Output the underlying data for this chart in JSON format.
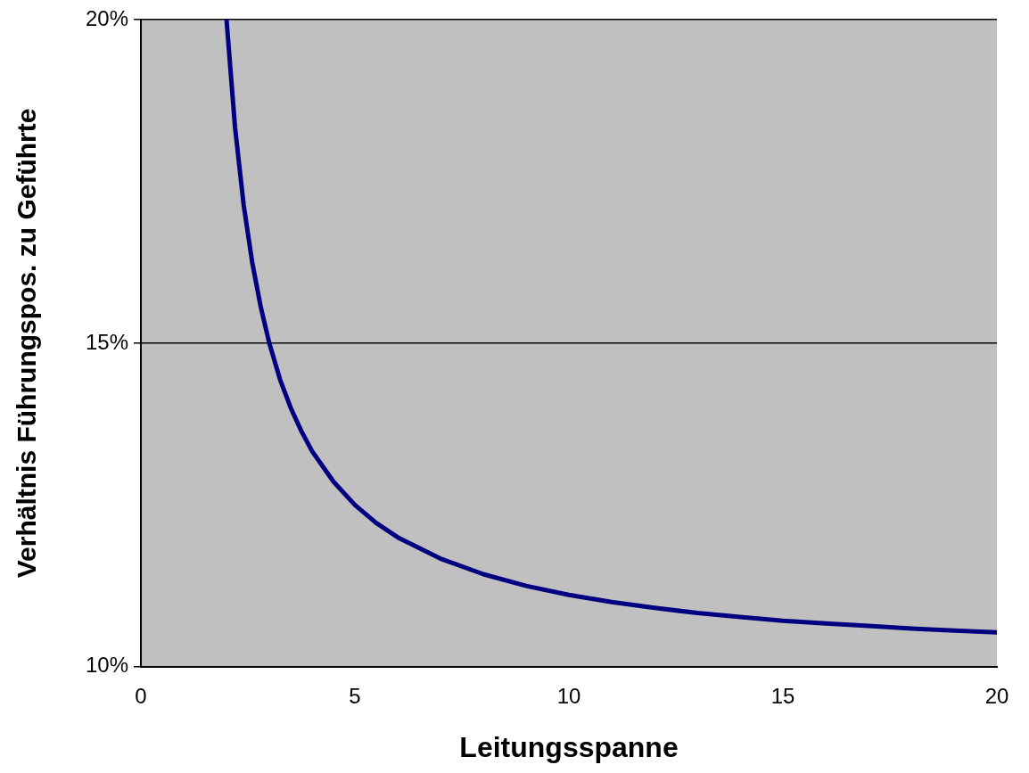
{
  "chart_data": {
    "type": "line",
    "xlabel": "Leitungsspanne",
    "ylabel": "Verhältnis Führungspos. zu Geführte",
    "x": [
      2,
      2.2,
      2.4,
      2.6,
      2.8,
      3,
      3.25,
      3.5,
      3.75,
      4,
      4.5,
      5,
      5.5,
      6,
      7,
      8,
      9,
      10,
      11,
      12,
      13,
      14,
      15,
      16,
      17,
      18,
      19,
      20
    ],
    "series": [
      {
        "color": "#000080",
        "values": [
          20,
          18.33,
          17.14,
          16.25,
          15.56,
          15,
          14.44,
          14,
          13.64,
          13.33,
          12.86,
          12.5,
          12.22,
          12,
          11.67,
          11.43,
          11.25,
          11.11,
          11,
          10.91,
          10.83,
          10.77,
          10.71,
          10.67,
          10.63,
          10.59,
          10.56,
          10.53
        ]
      }
    ],
    "xlim": [
      0,
      20
    ],
    "xticks": [
      0,
      5,
      10,
      15,
      20
    ],
    "ylim": [
      10,
      20
    ],
    "yticks": [
      {
        "value": 10,
        "label": "10%"
      },
      {
        "value": 15,
        "label": "15%"
      },
      {
        "value": 20,
        "label": "20%"
      }
    ],
    "grid": "y",
    "legend": false,
    "marker": "none",
    "line_style": "solid"
  }
}
